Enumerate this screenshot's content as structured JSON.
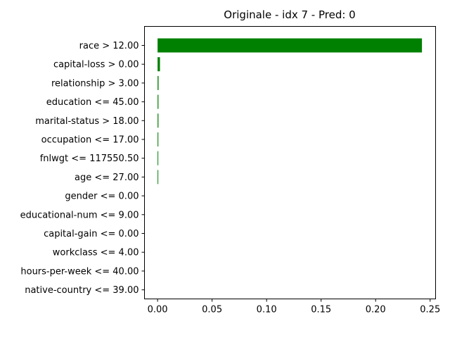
{
  "chart_data": {
    "type": "bar",
    "orientation": "horizontal",
    "title": "Originale - idx 7 - Pred: 0",
    "xlabel": "",
    "ylabel": "",
    "xlim": [
      -0.012,
      0.255
    ],
    "xticks": [
      0.0,
      0.05,
      0.1,
      0.15,
      0.2,
      0.25
    ],
    "xtick_labels": [
      "0.00",
      "0.05",
      "0.10",
      "0.15",
      "0.20",
      "0.25"
    ],
    "bar_color": "#008000",
    "grid": false,
    "categories": [
      "race > 12.00",
      "capital-loss > 0.00",
      "relationship > 3.00",
      "education <= 45.00",
      "marital-status > 18.00",
      "occupation <= 17.00",
      "fnlwgt <= 117550.50",
      "age <= 27.00",
      "gender <= 0.00",
      "educational-num <= 9.00",
      "capital-gain <= 0.00",
      "workclass <= 4.00",
      "hours-per-week <= 40.00",
      "native-country <= 39.00"
    ],
    "values": [
      0.2425,
      0.0022,
      0.0009,
      0.0008,
      0.0008,
      0.0007,
      0.0006,
      0.0006,
      0.0,
      0.0,
      0.0,
      0.0,
      0.0,
      0.0
    ]
  }
}
